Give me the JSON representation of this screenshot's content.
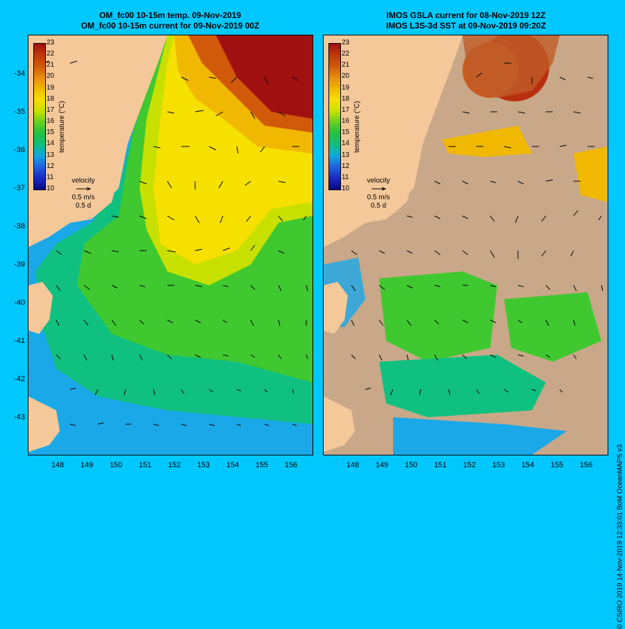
{
  "left_panel": {
    "title_line1": "OM_fc00 10-15m temp. 09-Nov-2019",
    "title_line2": "OM_fc00 10-15m current for 09-Nov-2019 00Z"
  },
  "right_panel": {
    "title_line1": "IMOS GSLA current for 08-Nov-2019 12Z",
    "title_line2": "IMOS L3S-3d SST at 09-Nov-2019 09:20Z"
  },
  "colorbar": {
    "title": "temperature (°C)",
    "ticks": [
      "23",
      "22",
      "21",
      "20",
      "19",
      "18",
      "17",
      "16",
      "15",
      "14",
      "13",
      "12",
      "11",
      "10"
    ],
    "colors": [
      "#a01010",
      "#c0380c",
      "#d05a0a",
      "#e88c10",
      "#f0b800",
      "#f6e000",
      "#c8e000",
      "#66d020",
      "#20c040",
      "#10c080",
      "#10a8e0",
      "#2060e0",
      "#1828c0",
      "#0a0a80"
    ]
  },
  "velocity_key": {
    "line1": "velocity",
    "line2": "0.5 m/s",
    "line3": "0.5 d"
  },
  "y_ticks": [
    "-34",
    "-35",
    "-36",
    "-37",
    "-38",
    "-39",
    "-40",
    "-41",
    "-42",
    "-43"
  ],
  "x_ticks": [
    "148",
    "149",
    "150",
    "151",
    "152",
    "153",
    "154",
    "155",
    "156"
  ],
  "credit": "© CSIRO 2019   14-Nov-2019 12:33:01 BoM OceanMAPS v3",
  "colors": {
    "background": "#00c8ff",
    "land": "#f5c89a",
    "cloud_mask": "#c8a888"
  }
}
